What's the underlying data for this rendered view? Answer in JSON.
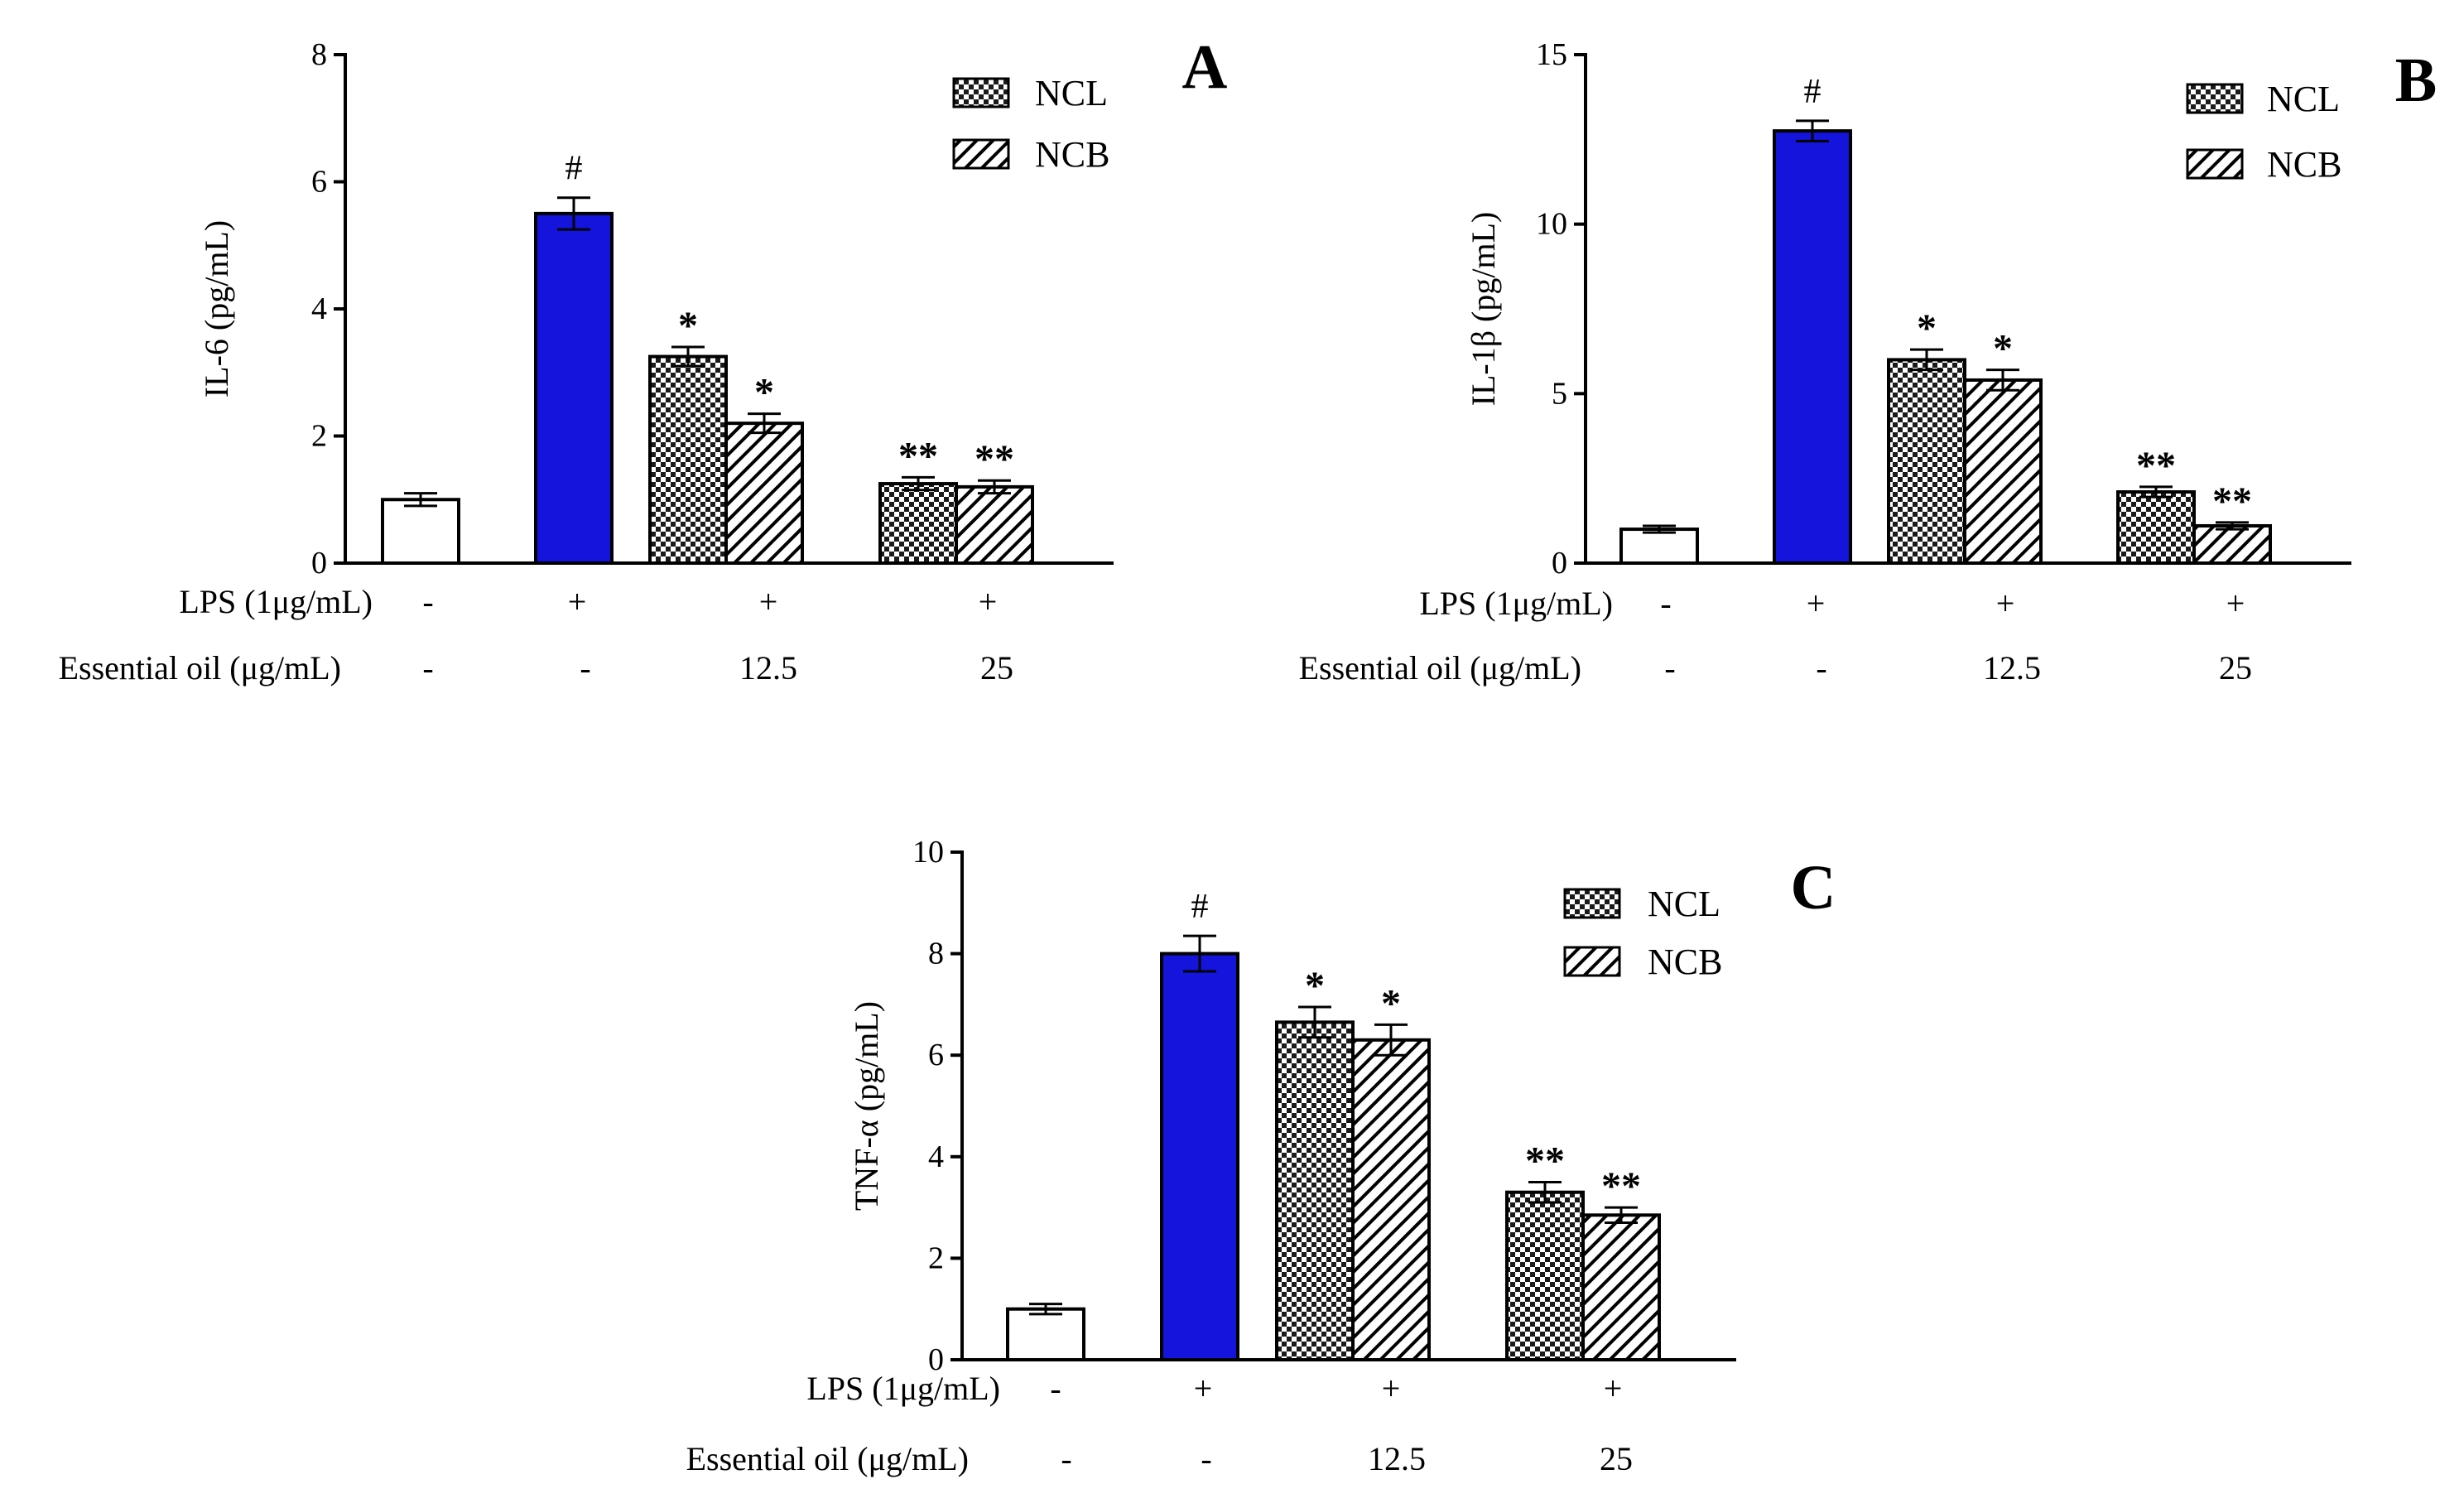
{
  "figure": {
    "row_labels": {
      "lps": "LPS (1μg/mL)",
      "oil": "Essential oil (μg/mL)"
    },
    "legend": {
      "ncl": "NCL",
      "ncb": "NCB"
    },
    "conditions": [
      {
        "lps": "-",
        "oil": "-"
      },
      {
        "lps": "+",
        "oil": "-"
      },
      {
        "lps": "+",
        "oil": "12.5"
      },
      {
        "lps": "+",
        "oil": "25"
      }
    ]
  },
  "colors": {
    "lps_bar": "#1414dc",
    "control_bar": "#ffffff",
    "stroke": "#000000"
  },
  "chart_data": [
    {
      "panel": "A",
      "type": "bar",
      "ylabel": "IL-6 (pg/mL)",
      "ylim": [
        0,
        8
      ],
      "yticks": [
        0,
        2,
        4,
        6,
        8
      ],
      "legend_position": "top-right",
      "bars": [
        {
          "group": 0,
          "kind": "control",
          "series": "",
          "value": 1.0,
          "err": 0.1,
          "mark": ""
        },
        {
          "group": 1,
          "kind": "lps",
          "series": "",
          "value": 5.5,
          "err": 0.25,
          "mark": "#"
        },
        {
          "group": 2,
          "kind": "ncl",
          "series": "NCL",
          "value": 3.25,
          "err": 0.15,
          "mark": "*"
        },
        {
          "group": 2,
          "kind": "ncb",
          "series": "NCB",
          "value": 2.2,
          "err": 0.15,
          "mark": "*"
        },
        {
          "group": 3,
          "kind": "ncl",
          "series": "NCL",
          "value": 1.25,
          "err": 0.1,
          "mark": "**"
        },
        {
          "group": 3,
          "kind": "ncb",
          "series": "NCB",
          "value": 1.2,
          "err": 0.1,
          "mark": "**"
        }
      ]
    },
    {
      "panel": "B",
      "type": "bar",
      "ylabel": "IL-1β (pg/mL)",
      "ylim": [
        0,
        15
      ],
      "yticks": [
        0,
        5,
        10,
        15
      ],
      "legend_position": "top-right",
      "bars": [
        {
          "group": 0,
          "kind": "control",
          "series": "",
          "value": 1.0,
          "err": 0.1,
          "mark": ""
        },
        {
          "group": 1,
          "kind": "lps",
          "series": "",
          "value": 12.75,
          "err": 0.3,
          "mark": "#"
        },
        {
          "group": 2,
          "kind": "ncl",
          "series": "NCL",
          "value": 6.0,
          "err": 0.3,
          "mark": "*"
        },
        {
          "group": 2,
          "kind": "ncb",
          "series": "NCB",
          "value": 5.4,
          "err": 0.3,
          "mark": "*"
        },
        {
          "group": 3,
          "kind": "ncl",
          "series": "NCL",
          "value": 2.1,
          "err": 0.15,
          "mark": "**"
        },
        {
          "group": 3,
          "kind": "ncb",
          "series": "NCB",
          "value": 1.1,
          "err": 0.1,
          "mark": "**"
        }
      ]
    },
    {
      "panel": "C",
      "type": "bar",
      "ylabel": "TNF-α (pg/mL)",
      "ylim": [
        0,
        10
      ],
      "yticks": [
        0,
        2,
        4,
        6,
        8,
        10
      ],
      "legend_position": "top-right",
      "bars": [
        {
          "group": 0,
          "kind": "control",
          "series": "",
          "value": 1.0,
          "err": 0.1,
          "mark": ""
        },
        {
          "group": 1,
          "kind": "lps",
          "series": "",
          "value": 8.0,
          "err": 0.35,
          "mark": "#"
        },
        {
          "group": 2,
          "kind": "ncl",
          "series": "NCL",
          "value": 6.65,
          "err": 0.3,
          "mark": "*"
        },
        {
          "group": 2,
          "kind": "ncb",
          "series": "NCB",
          "value": 6.3,
          "err": 0.3,
          "mark": "*"
        },
        {
          "group": 3,
          "kind": "ncl",
          "series": "NCL",
          "value": 3.3,
          "err": 0.2,
          "mark": "**"
        },
        {
          "group": 3,
          "kind": "ncb",
          "series": "NCB",
          "value": 2.85,
          "err": 0.15,
          "mark": "**"
        }
      ]
    }
  ]
}
